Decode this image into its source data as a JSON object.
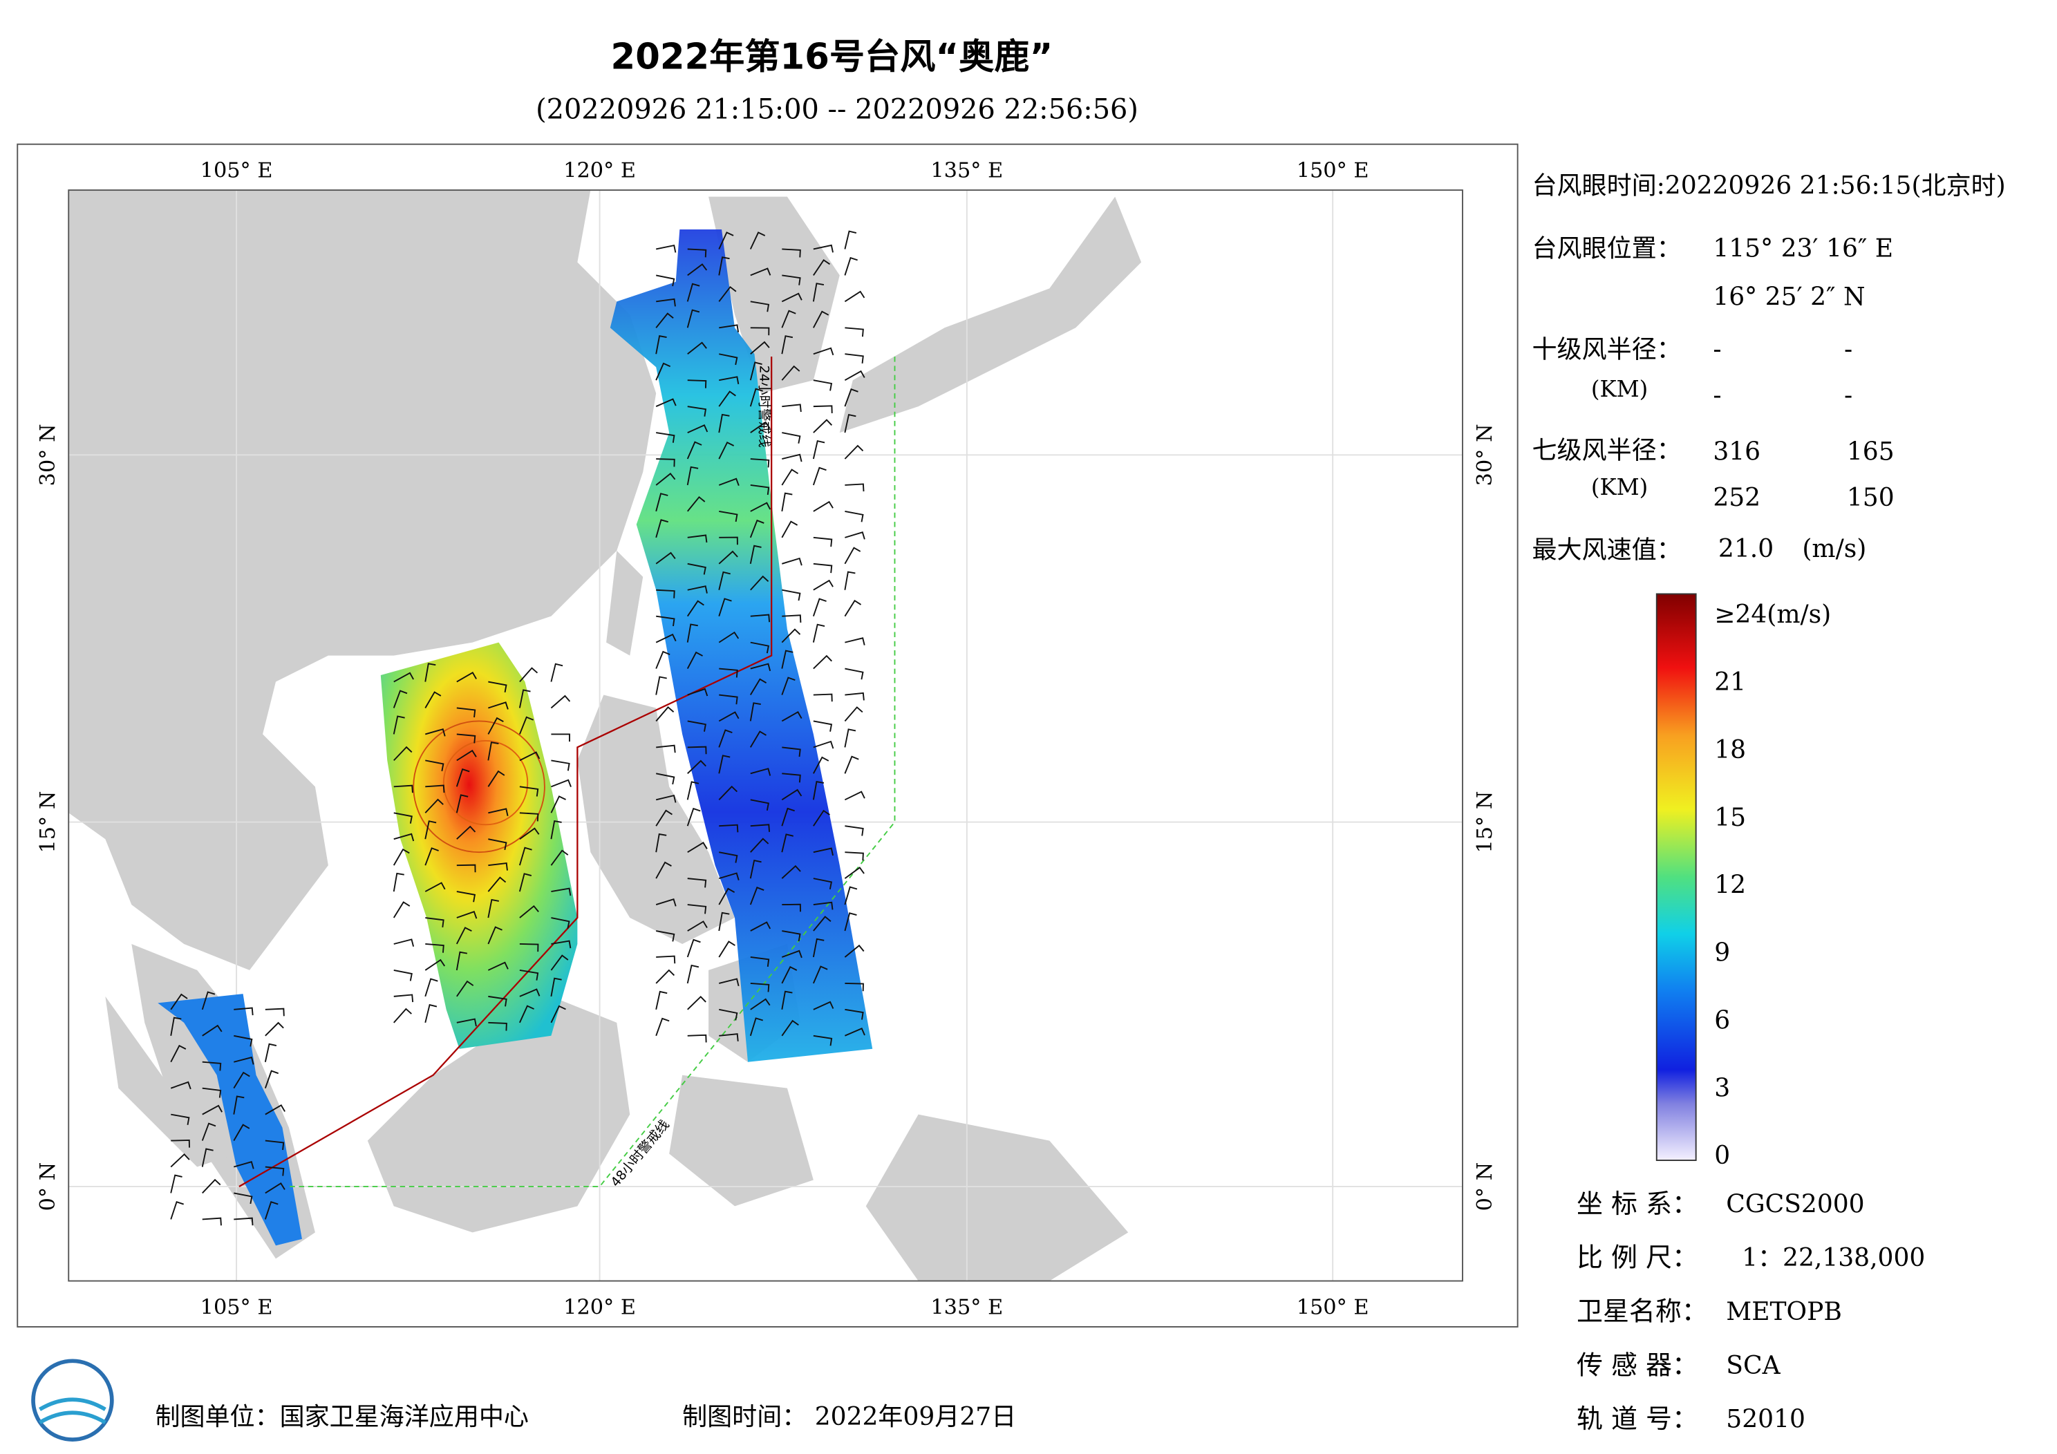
{
  "header": {
    "title": "2022年第16号台风“奥鹿”",
    "subtitle": "(20220926 21:15:00 -- 20220926 22:56:56)"
  },
  "map": {
    "lon_labels": [
      "105° E",
      "120° E",
      "135° E",
      "150° E"
    ],
    "lat_labels": [
      "30° N",
      "15° N",
      "0° N"
    ],
    "line_24h": "24小时警戒线",
    "line_48h": "48小时警戒线"
  },
  "info": {
    "eye_time": "台风眼时间:20220926 21:56:15(北京时)",
    "eye_position": {
      "label": "台风眼位置：",
      "lon": "115° 23′ 16″ E",
      "lat": "16° 25′ 2″ N"
    },
    "r10": {
      "label": "十级风半径：",
      "unit": "(KM)",
      "values": [
        "-",
        "-",
        "-",
        "-"
      ]
    },
    "r7": {
      "label": "七级风半径：",
      "unit": "(KM)",
      "values": [
        "316",
        "165",
        "252",
        "150"
      ]
    },
    "max_wind": {
      "label": "最大风速值：",
      "value": "21.0",
      "unit": "(m/s)"
    }
  },
  "colorbar": {
    "ticks": [
      0,
      3,
      6,
      9,
      12,
      15,
      18,
      21,
      {
        "value": 24,
        "label": "≥24(m/s)"
      }
    ]
  },
  "meta": {
    "coord": {
      "label": "坐 标 系：",
      "value": "CGCS2000"
    },
    "scale": {
      "label": "比 例 尺：",
      "value": "1：22,138,000"
    },
    "satellite": {
      "label": "卫星名称：",
      "value": "METOPB"
    },
    "sensor": {
      "label": "传 感 器：",
      "value": "SCA"
    },
    "orbit": {
      "label": "轨 道 号：",
      "value": "52010"
    }
  },
  "footer": {
    "unit": "制图单位：国家卫星海洋应用中心",
    "time": "制图时间：  2022年09月27日"
  }
}
